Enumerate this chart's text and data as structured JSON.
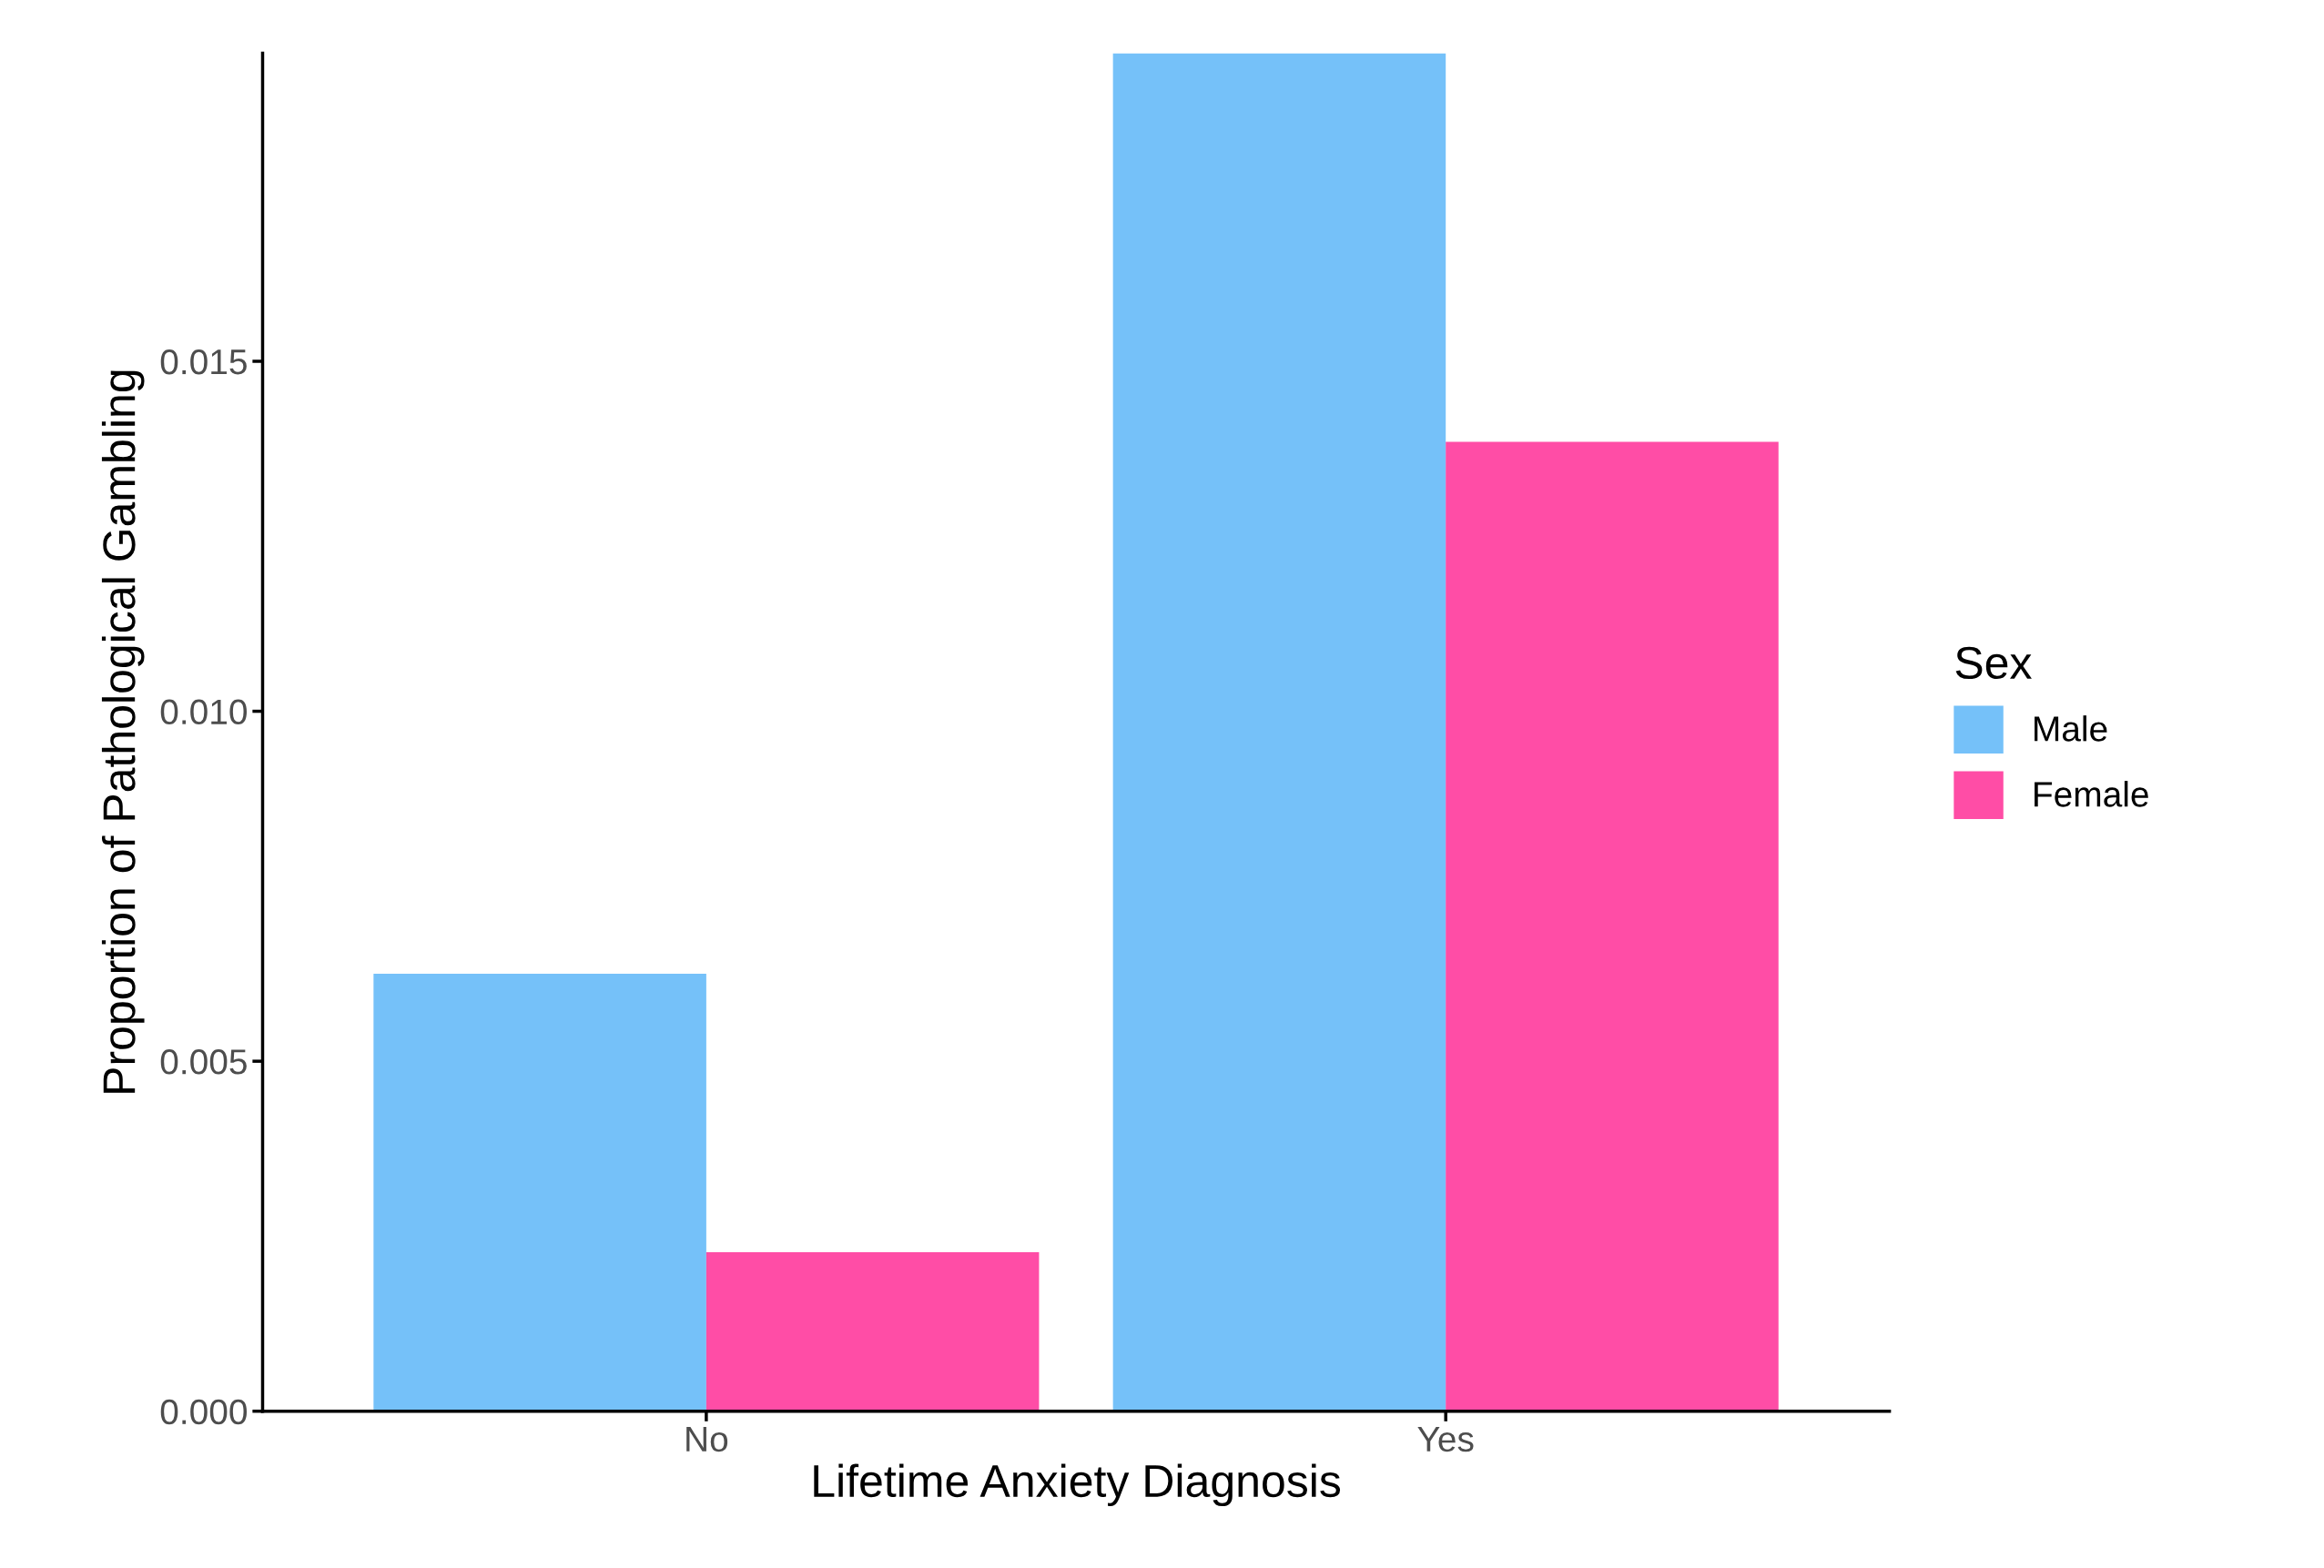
{
  "chart_data": {
    "type": "bar",
    "xlabel": "Lifetime Anxiety Diagnosis",
    "ylabel": "Proportion of Pathological Gambling",
    "legend_title": "Sex",
    "categories": [
      "No",
      "Yes"
    ],
    "series": [
      {
        "name": "Male",
        "color": "#75c1f9",
        "values": [
          0.00625,
          0.0194
        ]
      },
      {
        "name": "Female",
        "color": "#ff4da6",
        "values": [
          0.00227,
          0.01385
        ]
      }
    ],
    "ylim": [
      0,
      0.0194
    ],
    "yticks": [
      {
        "value": 0,
        "label": "0.000"
      },
      {
        "value": 0.005,
        "label": "0.005"
      },
      {
        "value": 0.01,
        "label": "0.010"
      },
      {
        "value": 0.015,
        "label": "0.015"
      }
    ],
    "grid": false,
    "legend": "right"
  }
}
